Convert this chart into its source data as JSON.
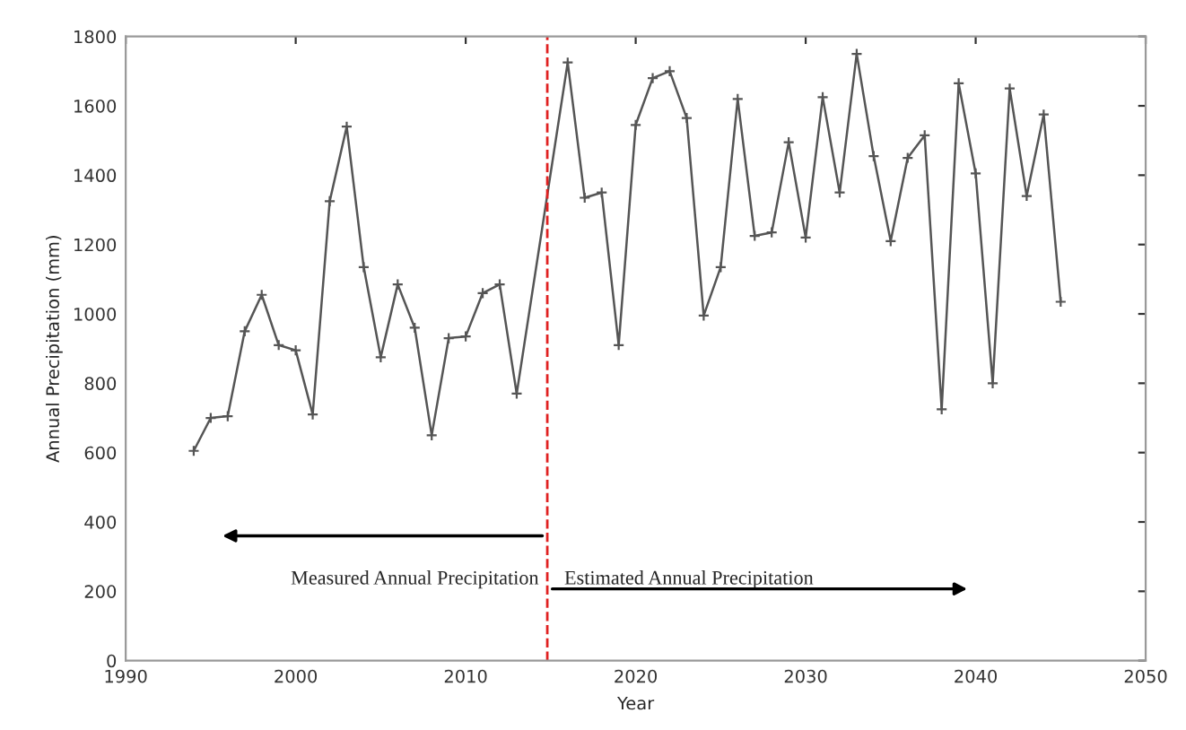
{
  "chart_data": {
    "type": "line",
    "xlabel": "Year",
    "ylabel": "Annual Precipitation (mm)",
    "x": [
      1994,
      1995,
      1996,
      1997,
      1998,
      1999,
      2000,
      2001,
      2002,
      2003,
      2004,
      2005,
      2006,
      2007,
      2008,
      2009,
      2010,
      2011,
      2012,
      2013,
      2016,
      2017,
      2018,
      2019,
      2020,
      2021,
      2022,
      2023,
      2024,
      2025,
      2026,
      2027,
      2028,
      2029,
      2030,
      2031,
      2032,
      2033,
      2034,
      2035,
      2036,
      2037,
      2038,
      2039,
      2040,
      2041,
      2042,
      2043,
      2044,
      2045
    ],
    "series": [
      {
        "color": "#555555",
        "values": [
          605,
          700,
          705,
          950,
          1055,
          910,
          895,
          710,
          1325,
          1540,
          1135,
          875,
          1085,
          960,
          650,
          930,
          935,
          1060,
          1085,
          770,
          1725,
          1335,
          1350,
          910,
          1545,
          1680,
          1700,
          1565,
          995,
          1135,
          1620,
          1225,
          1235,
          1495,
          1220,
          1625,
          1350,
          1750,
          1455,
          1210,
          1450,
          1515,
          725,
          1665,
          1405,
          800,
          1650,
          1340,
          1575,
          1035
        ]
      }
    ],
    "xlim": [
      1990,
      2050
    ],
    "xticks": [
      1990,
      2000,
      2010,
      2020,
      2030,
      2040,
      2050
    ],
    "ylim": [
      0,
      1800
    ],
    "yticks": [
      0,
      200,
      400,
      600,
      800,
      1000,
      1200,
      1400,
      1600,
      1800
    ],
    "ref_lines": [
      {
        "axis": "x",
        "value": 2014.8,
        "color": "#e02020",
        "line_style": "dashed"
      }
    ],
    "annotations": [
      "Measured Annual Precipitation",
      "Estimated Annual Precipitation"
    ],
    "marker": "cross",
    "line_style": "solid",
    "grid": false,
    "legend": false
  }
}
